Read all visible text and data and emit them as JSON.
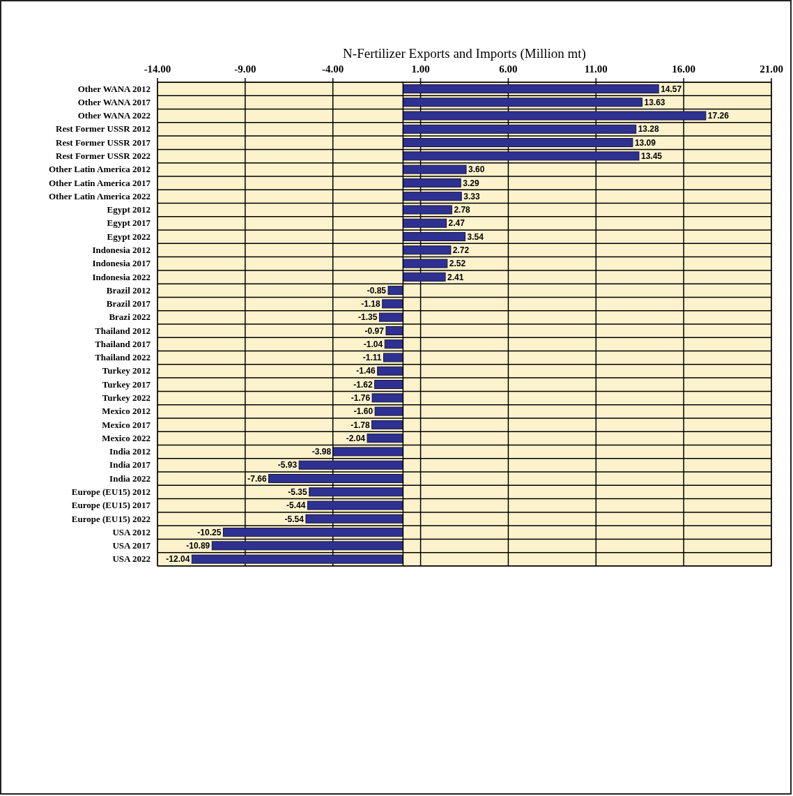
{
  "chart_data": {
    "type": "bar",
    "orientation": "horizontal",
    "title": "N-Fertilizer Exports and Imports (Million mt)",
    "categories": [
      "Other WANA 2012",
      "Other WANA 2017",
      "Other WANA 2022",
      "Rest Former USSR 2012",
      "Rest Former USSR 2017",
      "Rest Former USSR 2022",
      "Other Latin America 2012",
      "Other Latin America 2017",
      "Other Latin America 2022",
      "Egypt 2012",
      "Egypt 2017",
      "Egypt 2022",
      "Indonesia 2012",
      "Indonesia 2017",
      "Indonesia 2022",
      "Brazil 2012",
      "Brazil 2017",
      "Brazi 2022",
      "Thailand 2012",
      "Thailand 2017",
      "Thailand 2022",
      "Turkey 2012",
      "Turkey 2017",
      "Turkey 2022",
      "Mexico 2012",
      "Mexico 2017",
      "Mexico 2022",
      "India 2012",
      "India 2017",
      "India 2022",
      "Europe (EU15) 2012",
      "Europe (EU15) 2017",
      "Europe (EU15) 2022",
      "USA 2012",
      "USA 2017",
      "USA 2022"
    ],
    "values": [
      14.57,
      13.63,
      17.26,
      13.28,
      13.09,
      13.45,
      3.6,
      3.29,
      3.33,
      2.78,
      2.47,
      3.54,
      2.72,
      2.52,
      2.41,
      -0.85,
      -1.18,
      -1.35,
      -0.97,
      -1.04,
      -1.11,
      -1.46,
      -1.62,
      -1.76,
      -1.6,
      -1.78,
      -2.04,
      -3.98,
      -5.93,
      -7.66,
      -5.35,
      -5.44,
      -5.54,
      -10.25,
      -10.89,
      -12.04
    ],
    "value_labels": [
      "14.57",
      "13.63",
      "17.26",
      "13.28",
      "13.09",
      "13.45",
      "3.60",
      "3.29",
      "3.33",
      "2.78",
      "2.47",
      "3.54",
      "2.72",
      "2.52",
      "2.41",
      "-0.85",
      "-1.18",
      "-1.35",
      "-0.97",
      "-1.04",
      "-1.11",
      "-1.46",
      "-1.62",
      "-1.76",
      "-1.60",
      "-1.78",
      "-2.04",
      "-3.98",
      "-5.93",
      "-7.66",
      "-5.35",
      "-5.44",
      "-5.54",
      "-10.25",
      "-10.89",
      "-12.04"
    ],
    "color": "#2e3192",
    "xlim": [
      -14,
      21
    ],
    "xticks": [
      {
        "value": -14,
        "label": "-14.00"
      },
      {
        "value": -9,
        "label": "-9.00"
      },
      {
        "value": -4,
        "label": "-4.00"
      },
      {
        "value": 1,
        "label": "1.00"
      },
      {
        "value": 6,
        "label": "6.00"
      },
      {
        "value": 11,
        "label": "11.00"
      },
      {
        "value": 16,
        "label": "16.00"
      },
      {
        "value": 21,
        "label": "21.00"
      }
    ],
    "grid": true
  }
}
